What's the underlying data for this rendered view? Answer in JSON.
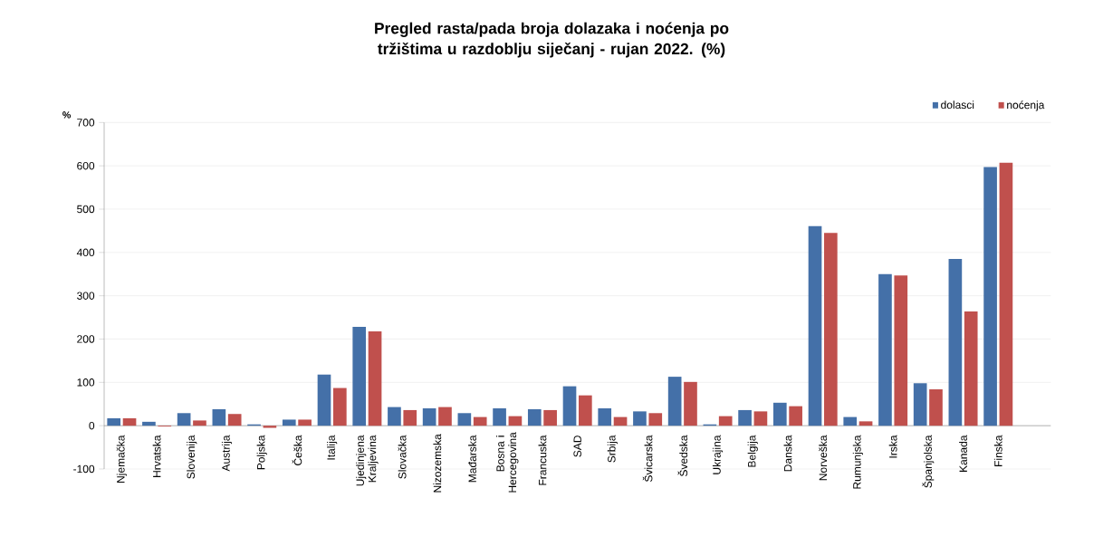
{
  "chart_data": {
    "type": "bar",
    "title": "Pregled rasta/pada broja dolazaka i noćenja po tržištima u razdoblju siječanj - rujan 2022. (%)",
    "ylabel": "%",
    "categories": [
      "Njemačka",
      "Hrvatska",
      "Slovenija",
      "Austrija",
      "Poljska",
      "Češka",
      "Italija",
      "Ujedinjena Kraljevina",
      "Slovačka",
      "Nizozemska",
      "Mađarska",
      "Bosna i Hercegovina",
      "Francuska",
      "SAD",
      "Srbija",
      "Švicarska",
      "Švedska",
      "Ukrajina",
      "Belgija",
      "Danska",
      "Norveška",
      "Rumunjska",
      "Irska",
      "Španjolska",
      "Kanada",
      "Finska"
    ],
    "series": [
      {
        "name": "dolasci",
        "color": "#4470a8",
        "values": [
          17,
          9,
          29,
          38,
          3,
          14,
          118,
          228,
          43,
          40,
          29,
          40,
          38,
          91,
          40,
          33,
          113,
          3,
          36,
          53,
          461,
          20,
          350,
          98,
          385,
          597
        ]
      },
      {
        "name": "noćenja",
        "color": "#c0504d",
        "values": [
          17,
          -2,
          12,
          27,
          -5,
          14,
          87,
          218,
          36,
          43,
          20,
          22,
          36,
          70,
          20,
          29,
          101,
          22,
          33,
          45,
          445,
          10,
          347,
          84,
          264,
          607
        ]
      }
    ],
    "ylim": [
      -100,
      700
    ],
    "yticks": [
      -100,
      0,
      100,
      200,
      300,
      400,
      500,
      600,
      700
    ],
    "grid": "y",
    "legend": "top right"
  }
}
